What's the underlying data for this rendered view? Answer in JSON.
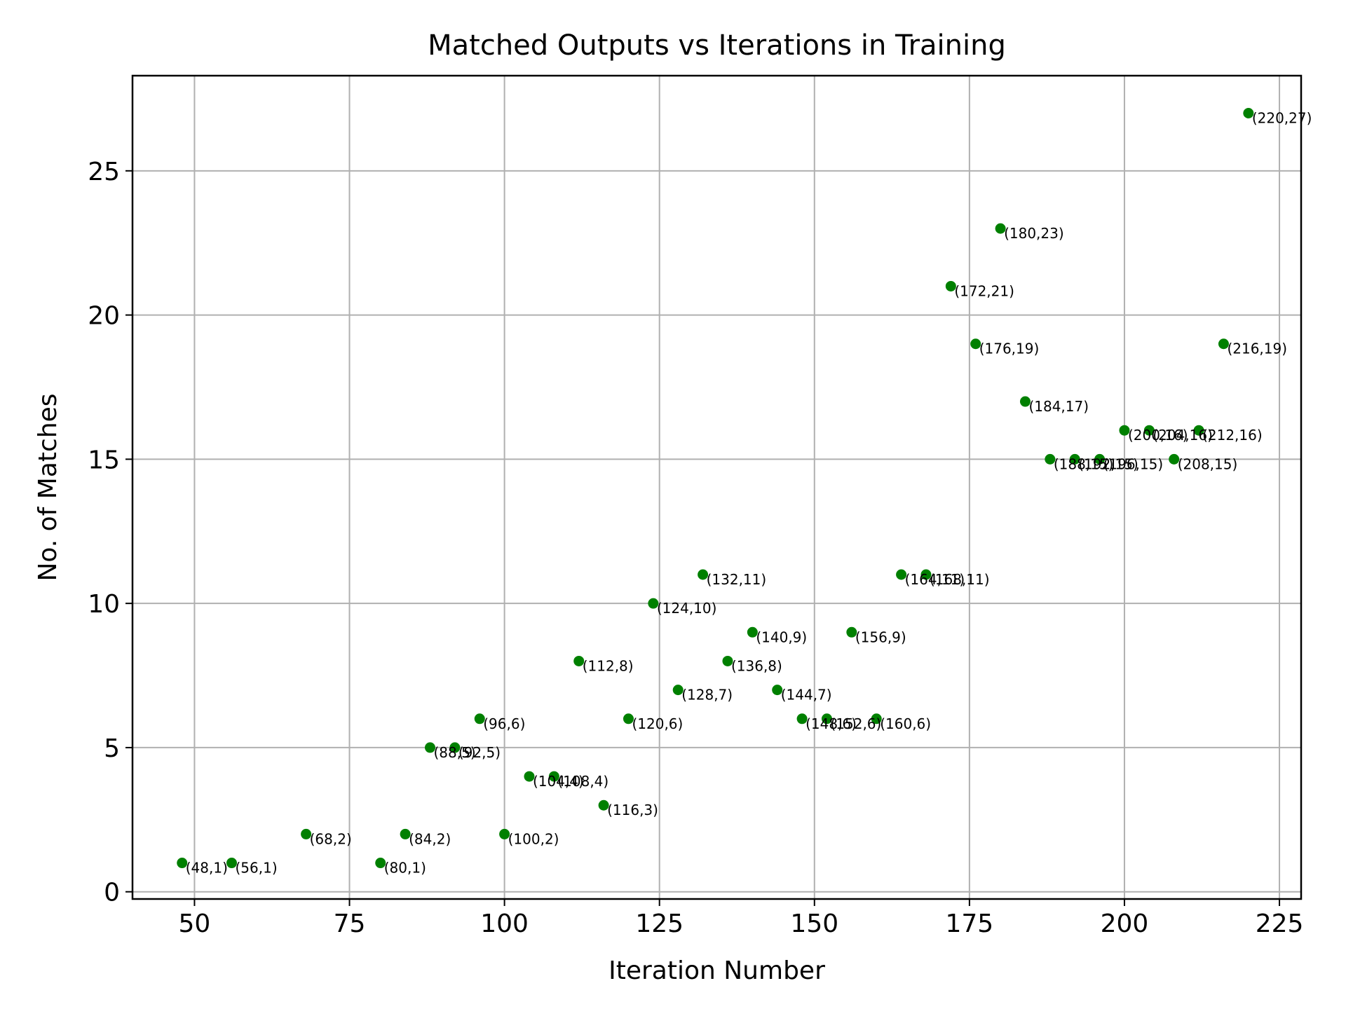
{
  "chart_data": {
    "type": "scatter",
    "title": "Matched Outputs vs Iterations in Training",
    "xlabel": "Iteration Number",
    "ylabel": "No. of Matches",
    "xlim": [
      40,
      228.5
    ],
    "ylim": [
      -0.25,
      28.3
    ],
    "xticks": [
      50,
      75,
      100,
      125,
      150,
      175,
      200,
      225
    ],
    "yticks": [
      0,
      5,
      10,
      15,
      20,
      25
    ],
    "grid": true,
    "marker_color": "#008000",
    "series": [
      {
        "points": [
          {
            "x": 48,
            "y": 1,
            "label": "(48,1)"
          },
          {
            "x": 56,
            "y": 1,
            "label": "(56,1)"
          },
          {
            "x": 68,
            "y": 2,
            "label": "(68,2)"
          },
          {
            "x": 80,
            "y": 1,
            "label": "(80,1)"
          },
          {
            "x": 84,
            "y": 2,
            "label": "(84,2)"
          },
          {
            "x": 88,
            "y": 5,
            "label": "(88,5)"
          },
          {
            "x": 92,
            "y": 5,
            "label": "(92,5)"
          },
          {
            "x": 96,
            "y": 6,
            "label": "(96,6)"
          },
          {
            "x": 100,
            "y": 2,
            "label": "(100,2)"
          },
          {
            "x": 104,
            "y": 4,
            "label": "(104,4)"
          },
          {
            "x": 108,
            "y": 4,
            "label": "(108,4)"
          },
          {
            "x": 112,
            "y": 8,
            "label": "(112,8)"
          },
          {
            "x": 116,
            "y": 3,
            "label": "(116,3)"
          },
          {
            "x": 120,
            "y": 6,
            "label": "(120,6)"
          },
          {
            "x": 124,
            "y": 10,
            "label": "(124,10)"
          },
          {
            "x": 128,
            "y": 7,
            "label": "(128,7)"
          },
          {
            "x": 132,
            "y": 11,
            "label": "(132,11)"
          },
          {
            "x": 136,
            "y": 8,
            "label": "(136,8)"
          },
          {
            "x": 140,
            "y": 9,
            "label": "(140,9)"
          },
          {
            "x": 144,
            "y": 7,
            "label": "(144,7)"
          },
          {
            "x": 148,
            "y": 6,
            "label": "(148,6)"
          },
          {
            "x": 152,
            "y": 6,
            "label": "(152,6)"
          },
          {
            "x": 156,
            "y": 9,
            "label": "(156,9)"
          },
          {
            "x": 160,
            "y": 6,
            "label": "(160,6)"
          },
          {
            "x": 164,
            "y": 11,
            "label": "(164,11)"
          },
          {
            "x": 168,
            "y": 11,
            "label": "(168,11)"
          },
          {
            "x": 172,
            "y": 21,
            "label": "(172,21)"
          },
          {
            "x": 176,
            "y": 19,
            "label": "(176,19)"
          },
          {
            "x": 180,
            "y": 23,
            "label": "(180,23)"
          },
          {
            "x": 184,
            "y": 17,
            "label": "(184,17)"
          },
          {
            "x": 188,
            "y": 15,
            "label": "(188,15)"
          },
          {
            "x": 192,
            "y": 15,
            "label": "(192,15)"
          },
          {
            "x": 196,
            "y": 15,
            "label": "(196,15)"
          },
          {
            "x": 200,
            "y": 16,
            "label": "(200,16)"
          },
          {
            "x": 204,
            "y": 16,
            "label": "(204,16)"
          },
          {
            "x": 208,
            "y": 15,
            "label": "(208,15)"
          },
          {
            "x": 212,
            "y": 16,
            "label": "(212,16)"
          },
          {
            "x": 216,
            "y": 19,
            "label": "(216,19)"
          },
          {
            "x": 220,
            "y": 27,
            "label": "(220,27)"
          }
        ]
      }
    ]
  }
}
